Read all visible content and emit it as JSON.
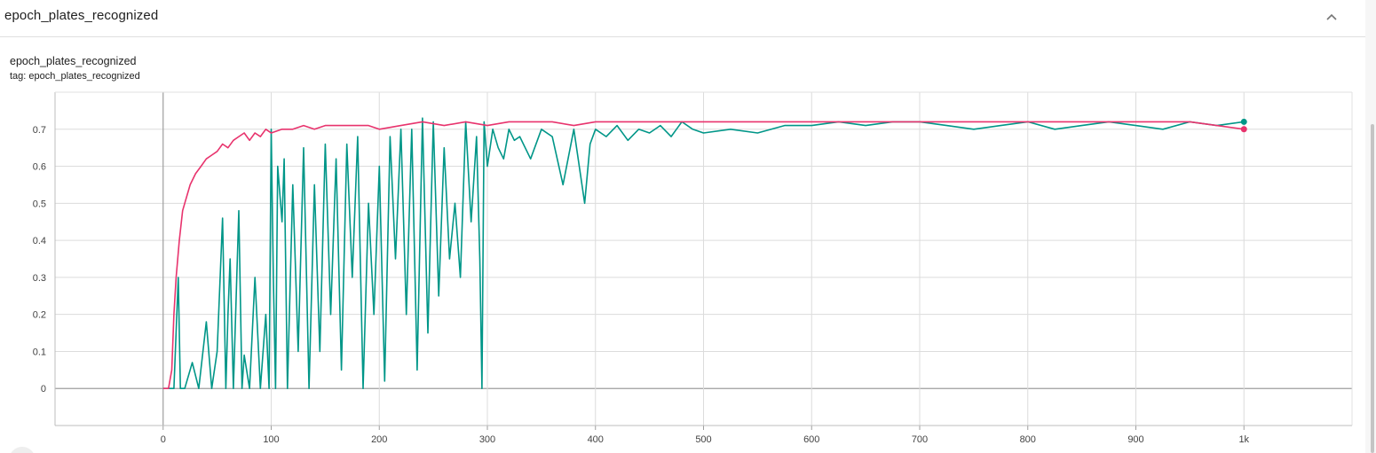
{
  "card": {
    "title": "epoch_plates_recognized",
    "collapse_icon": "chevron-up-icon"
  },
  "chart_title": "epoch_plates_recognized",
  "chart_tag": "tag: epoch_plates_recognized",
  "colors": {
    "series_teal": "#009688",
    "series_pink": "#e8336d",
    "grid": "#dcdcdc",
    "axis": "#9e9e9e"
  },
  "chart_data": {
    "type": "line",
    "title": "",
    "xlabel": "",
    "ylabel": "",
    "xlim": [
      -100,
      1100
    ],
    "ylim": [
      -0.1,
      0.8
    ],
    "x_ticks": [
      0,
      100,
      200,
      300,
      400,
      500,
      600,
      700,
      800,
      900,
      1000
    ],
    "x_tick_labels": [
      "0",
      "100",
      "200",
      "300",
      "400",
      "500",
      "600",
      "700",
      "800",
      "900",
      "1k"
    ],
    "y_ticks": [
      0,
      0.1,
      0.2,
      0.3,
      0.4,
      0.5,
      0.6,
      0.7
    ],
    "y_tick_labels": [
      "0",
      "0.1",
      "0.2",
      "0.3",
      "0.4",
      "0.5",
      "0.6",
      "0.7"
    ],
    "grid": true,
    "legend": "none",
    "series": [
      {
        "color": "#009688",
        "x": [
          0,
          10,
          14,
          16,
          20,
          27,
          33,
          40,
          45,
          50,
          55,
          58,
          60,
          62,
          65,
          70,
          73,
          75,
          80,
          85,
          90,
          95,
          98,
          100,
          102,
          104,
          106,
          110,
          112,
          115,
          120,
          125,
          130,
          135,
          140,
          145,
          150,
          155,
          160,
          165,
          170,
          175,
          180,
          185,
          190,
          195,
          200,
          205,
          210,
          215,
          220,
          225,
          230,
          235,
          240,
          245,
          250,
          255,
          260,
          265,
          270,
          275,
          280,
          285,
          290,
          293,
          295,
          297,
          300,
          305,
          310,
          315,
          320,
          325,
          330,
          340,
          350,
          360,
          370,
          380,
          390,
          395,
          400,
          410,
          420,
          430,
          440,
          450,
          460,
          470,
          480,
          490,
          500,
          525,
          550,
          575,
          600,
          625,
          650,
          675,
          700,
          725,
          750,
          775,
          800,
          825,
          850,
          875,
          900,
          925,
          950,
          975,
          1000
        ],
        "y": [
          0,
          0,
          0.3,
          0,
          0,
          0.07,
          0,
          0.18,
          0,
          0.1,
          0.46,
          0,
          0.2,
          0.35,
          0,
          0.48,
          0,
          0.09,
          0,
          0.3,
          0,
          0.2,
          0,
          0.7,
          0.3,
          0,
          0.6,
          0.45,
          0.62,
          0,
          0.55,
          0.1,
          0.65,
          0,
          0.55,
          0.1,
          0.66,
          0.2,
          0.62,
          0.05,
          0.66,
          0.3,
          0.68,
          0,
          0.5,
          0.2,
          0.6,
          0.02,
          0.68,
          0.35,
          0.7,
          0.2,
          0.7,
          0.05,
          0.73,
          0.15,
          0.72,
          0.25,
          0.65,
          0.35,
          0.5,
          0.3,
          0.72,
          0.45,
          0.68,
          0.35,
          0,
          0.72,
          0.6,
          0.7,
          0.65,
          0.62,
          0.7,
          0.67,
          0.68,
          0.62,
          0.7,
          0.68,
          0.55,
          0.7,
          0.5,
          0.66,
          0.7,
          0.68,
          0.71,
          0.67,
          0.7,
          0.69,
          0.71,
          0.68,
          0.72,
          0.7,
          0.69,
          0.7,
          0.69,
          0.71,
          0.71,
          0.72,
          0.71,
          0.72,
          0.72,
          0.71,
          0.7,
          0.71,
          0.72,
          0.7,
          0.71,
          0.72,
          0.71,
          0.7,
          0.72,
          0.71,
          0.72
        ]
      },
      {
        "color": "#e8336d",
        "x": [
          0,
          5,
          8,
          10,
          12,
          15,
          18,
          20,
          25,
          30,
          35,
          40,
          45,
          50,
          55,
          60,
          65,
          70,
          75,
          80,
          85,
          90,
          95,
          100,
          110,
          120,
          130,
          140,
          150,
          160,
          170,
          180,
          190,
          200,
          220,
          240,
          260,
          280,
          300,
          320,
          340,
          360,
          380,
          400,
          450,
          500,
          550,
          600,
          650,
          700,
          750,
          800,
          850,
          900,
          950,
          1000
        ],
        "y": [
          0,
          0,
          0.05,
          0.2,
          0.3,
          0.4,
          0.48,
          0.5,
          0.55,
          0.58,
          0.6,
          0.62,
          0.63,
          0.64,
          0.66,
          0.65,
          0.67,
          0.68,
          0.69,
          0.67,
          0.69,
          0.68,
          0.7,
          0.69,
          0.7,
          0.7,
          0.71,
          0.7,
          0.71,
          0.71,
          0.71,
          0.71,
          0.71,
          0.7,
          0.71,
          0.72,
          0.71,
          0.72,
          0.71,
          0.72,
          0.72,
          0.72,
          0.71,
          0.72,
          0.72,
          0.72,
          0.72,
          0.72,
          0.72,
          0.72,
          0.72,
          0.72,
          0.72,
          0.72,
          0.72,
          0.7
        ]
      }
    ]
  }
}
